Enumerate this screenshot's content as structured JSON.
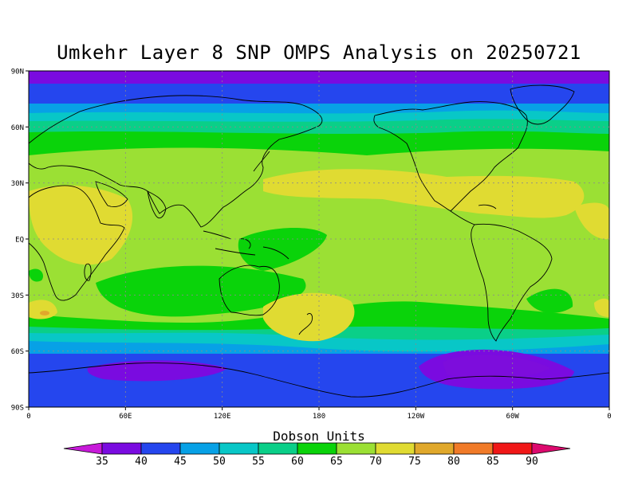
{
  "title": "Umkehr Layer 8 SNP OMPS Analysis on 20250721",
  "map": {
    "lat_labels": [
      "90N",
      "60N",
      "30N",
      "EQ",
      "30S",
      "60S",
      "90S"
    ],
    "lon_labels": [
      "0",
      "60E",
      "120E",
      "180",
      "120W",
      "60W",
      "0"
    ],
    "grid": "dotted",
    "projection": "cylindrical"
  },
  "colorbar": {
    "title": "Dobson Units",
    "levels": [
      "35",
      "40",
      "45",
      "50",
      "55",
      "60",
      "65",
      "70",
      "75",
      "80",
      "85",
      "90"
    ],
    "colors": [
      "#c71ad9",
      "#7a0be0",
      "#2546ee",
      "#07a1e6",
      "#08c7c7",
      "#0acf88",
      "#0ad30a",
      "#9be034",
      "#e0db32",
      "#e0a82b",
      "#f07a28",
      "#f01717",
      "#dc0a6e"
    ]
  }
}
